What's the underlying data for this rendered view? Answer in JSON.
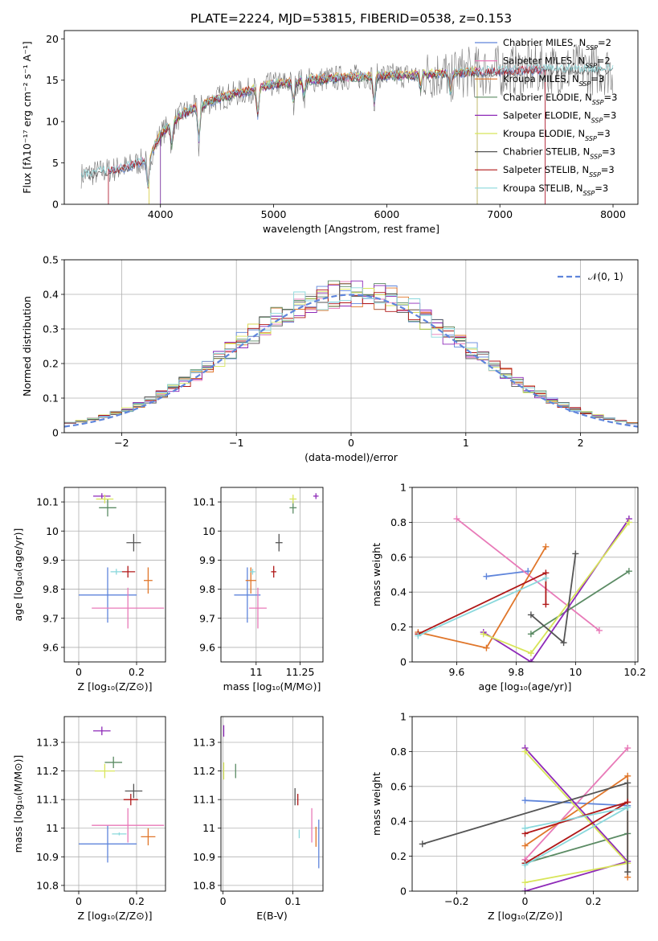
{
  "figure": {
    "title": "PLATE=2224, MJD=53815, FIBERID=0538, z=0.153"
  },
  "colors": [
    "#5f85db",
    "#e87ab8",
    "#e0762a",
    "#5b8b64",
    "#8e2ab8",
    "#d8e55a",
    "#555555",
    "#b01818",
    "#8ad8dc"
  ],
  "chart_data": [
    {
      "id": "spectrum",
      "type": "line",
      "title": "PLATE=2224, MJD=53815, FIBERID=0538, z=0.153",
      "xlabel": "wavelength [Angstrom, rest frame]",
      "ylabel": "Flux [fλ10⁻¹⁷ erg cm⁻² s⁻¹ A⁻¹]",
      "xlim": [
        3150,
        8220
      ],
      "ylim": [
        0,
        21
      ],
      "xticks": [
        4000,
        5000,
        6000,
        7000,
        8000
      ],
      "yticks": [
        0,
        5,
        10,
        15,
        20
      ],
      "grid": false,
      "legend_position": "right",
      "legend": [
        "Chabrier MILES, N_SSP=2",
        "Salpeter MILES, N_SSP=2",
        "Kroupa MILES, N_SSP=3",
        "Chabrier ELODIE, N_SSP=3",
        "Salpeter ELODIE, N_SSP=3",
        "Kroupa ELODIE, N_SSP=3",
        "Chabrier STELIB, N_SSP=3",
        "Salpeter STELIB, N_SSP=3",
        "Kroupa STELIB, N_SSP=3"
      ],
      "continuum_x": [
        3300,
        3500,
        3700,
        3900,
        4000,
        4200,
        4500,
        4800,
        5000,
        5300,
        5600,
        5900,
        6200,
        6500,
        6800,
        7000,
        7200,
        7400
      ],
      "continuum_y": [
        3.5,
        4.0,
        4.5,
        5.5,
        8.5,
        11.0,
        12.8,
        13.8,
        14.5,
        15.0,
        15.3,
        15.5,
        15.6,
        15.8,
        16.0,
        16.1,
        16.2,
        16.3
      ],
      "data_range": [
        3300,
        8000
      ],
      "model_ranges": [
        [
          3540,
          7400
        ],
        [
          3540,
          7400
        ],
        [
          3900,
          6800
        ],
        [
          4000,
          6800
        ],
        [
          4000,
          6800
        ],
        [
          3900,
          6800
        ],
        [
          3300,
          8000
        ],
        [
          3540,
          7400
        ],
        [
          3300,
          8000
        ]
      ]
    },
    {
      "id": "residuals",
      "type": "line",
      "xlabel": "(data-model)/error",
      "ylabel": "Normed distribution",
      "xlim": [
        -2.5,
        2.5
      ],
      "ylim": [
        0,
        0.5
      ],
      "xticks": [
        -2,
        -1,
        0,
        1,
        2
      ],
      "yticks": [
        0.0,
        0.1,
        0.2,
        0.3,
        0.4,
        0.5
      ],
      "grid": true,
      "legend_position": "top-right",
      "legend": [
        "𝒩(0, 1)"
      ],
      "bin_edges_start": -2.5,
      "bin_width": 0.1,
      "n_bins": 50
    },
    {
      "id": "age-vs-Z",
      "type": "scatter",
      "xlabel": "Z [log₁₀(Z/Z⊙)]",
      "ylabel": "age  [log₁₀(age/yr)]",
      "xlim": [
        -0.05,
        0.3
      ],
      "ylim": [
        9.55,
        10.15
      ],
      "xticks": [
        0.0,
        0.2
      ],
      "yticks": [
        9.6,
        9.7,
        9.8,
        9.9,
        10.0,
        10.1
      ],
      "grid": true,
      "points": [
        {
          "x": 0.1,
          "xerr": 0.2,
          "y": 9.78,
          "yerr": 0.19
        },
        {
          "x": 0.17,
          "xerr": 0.25,
          "y": 9.735,
          "yerr": 0.14
        },
        {
          "x": 0.24,
          "xerr": 0.03,
          "y": 9.83,
          "yerr": 0.09
        },
        {
          "x": 0.1,
          "xerr": 0.06,
          "y": 10.08,
          "yerr": 0.06
        },
        {
          "x": 0.08,
          "xerr": 0.06,
          "y": 10.12,
          "yerr": 0.02
        },
        {
          "x": 0.09,
          "xerr": 0.06,
          "y": 10.11,
          "yerr": 0.03
        },
        {
          "x": 0.19,
          "xerr": 0.05,
          "y": 9.96,
          "yerr": 0.06
        },
        {
          "x": 0.17,
          "xerr": 0.05,
          "y": 9.86,
          "yerr": 0.04
        },
        {
          "x": 0.13,
          "xerr": 0.04,
          "y": 9.86,
          "yerr": 0.02
        }
      ]
    },
    {
      "id": "age-vs-mass",
      "type": "scatter",
      "xlabel": "mass [log₁₀(M/M⊙)]",
      "xlim": [
        10.8,
        11.38
      ],
      "ylim": [
        9.55,
        10.15
      ],
      "xticks": [
        11.0,
        11.25
      ],
      "yticks": [
        9.6,
        9.7,
        9.8,
        9.9,
        10.0,
        10.1
      ],
      "grid": true,
      "points": [
        {
          "x": 10.95,
          "xerr": 0.15,
          "y": 9.78,
          "yerr": 0.19
        },
        {
          "x": 11.01,
          "xerr": 0.1,
          "y": 9.735,
          "yerr": 0.14
        },
        {
          "x": 10.97,
          "xerr": 0.06,
          "y": 9.83,
          "yerr": 0.09
        },
        {
          "x": 11.21,
          "xerr": 0.04,
          "y": 10.08,
          "yerr": 0.04
        },
        {
          "x": 11.34,
          "xerr": 0.03,
          "y": 10.12,
          "yerr": 0.02
        },
        {
          "x": 11.21,
          "xerr": 0.04,
          "y": 10.11,
          "yerr": 0.03
        },
        {
          "x": 11.13,
          "xerr": 0.04,
          "y": 9.96,
          "yerr": 0.06
        },
        {
          "x": 11.1,
          "xerr": 0.03,
          "y": 9.86,
          "yerr": 0.04
        },
        {
          "x": 10.98,
          "xerr": 0.03,
          "y": 9.86,
          "yerr": 0.02
        }
      ]
    },
    {
      "id": "weight-vs-age",
      "type": "line",
      "xlabel": "age  [log₁₀(age/yr)]",
      "ylabel": "mass weight",
      "xlim": [
        9.45,
        10.21
      ],
      "ylim": [
        0,
        1
      ],
      "xticks": [
        9.6,
        9.8,
        10.0,
        10.2
      ],
      "yticks": [
        0.0,
        0.2,
        0.4,
        0.6,
        0.8,
        1.0
      ],
      "grid": true,
      "series": [
        {
          "x": [
            9.7,
            9.84
          ],
          "y": [
            0.49,
            0.52
          ]
        },
        {
          "x": [
            9.6,
            10.08
          ],
          "y": [
            0.82,
            0.18
          ]
        },
        {
          "x": [
            9.47,
            9.7,
            9.9
          ],
          "y": [
            0.17,
            0.08,
            0.66
          ]
        },
        {
          "x": [
            9.85,
            10.18
          ],
          "y": [
            0.16,
            0.52
          ]
        },
        {
          "x": [
            9.69,
            9.85,
            10.18
          ],
          "y": [
            0.17,
            0.0,
            0.82
          ]
        },
        {
          "x": [
            9.69,
            9.85,
            10.18
          ],
          "y": [
            0.16,
            0.05,
            0.8
          ]
        },
        {
          "x": [
            9.85,
            9.96,
            10.0
          ],
          "y": [
            0.27,
            0.11,
            0.62
          ]
        },
        {
          "x": [
            9.47,
            9.9,
            9.9
          ],
          "y": [
            0.16,
            0.51,
            0.33
          ]
        },
        {
          "x": [
            9.47,
            9.9
          ],
          "y": [
            0.15,
            0.48
          ]
        }
      ]
    },
    {
      "id": "mass-vs-Z",
      "type": "scatter",
      "xlabel": "Z [log₁₀(Z/Z⊙)]",
      "ylabel": "mass [log₁₀(M/M⊙)]",
      "xlim": [
        -0.05,
        0.3
      ],
      "ylim": [
        10.78,
        11.39
      ],
      "xticks": [
        0.0,
        0.2
      ],
      "yticks": [
        10.8,
        10.9,
        11.0,
        11.1,
        11.2,
        11.3
      ],
      "grid": true,
      "points": [
        {
          "x": 0.1,
          "xerr": 0.2,
          "y": 10.945,
          "yerr": 0.13
        },
        {
          "x": 0.17,
          "xerr": 0.25,
          "y": 11.01,
          "yerr": 0.12
        },
        {
          "x": 0.24,
          "xerr": 0.05,
          "y": 10.97,
          "yerr": 0.06
        },
        {
          "x": 0.12,
          "xerr": 0.06,
          "y": 11.23,
          "yerr": 0.04
        },
        {
          "x": 0.08,
          "xerr": 0.06,
          "y": 11.34,
          "yerr": 0.03
        },
        {
          "x": 0.09,
          "xerr": 0.07,
          "y": 11.2,
          "yerr": 0.05
        },
        {
          "x": 0.19,
          "xerr": 0.06,
          "y": 11.13,
          "yerr": 0.05
        },
        {
          "x": 0.18,
          "xerr": 0.05,
          "y": 11.1,
          "yerr": 0.04
        },
        {
          "x": 0.14,
          "xerr": 0.05,
          "y": 10.98,
          "yerr": 0.01
        }
      ]
    },
    {
      "id": "mass-vs-ebv",
      "type": "scatter",
      "xlabel": "E(B-V)",
      "xlim": [
        -0.003,
        0.143
      ],
      "ylim": [
        10.78,
        11.39
      ],
      "xticks": [
        0.0,
        0.1
      ],
      "yticks": [
        10.8,
        10.9,
        11.0,
        11.1,
        11.2,
        11.3
      ],
      "grid": true,
      "points": [
        {
          "x": 0.137,
          "y": 10.945,
          "yerr": 0.17
        },
        {
          "x": 0.127,
          "y": 11.01,
          "yerr": 0.12
        },
        {
          "x": 0.133,
          "y": 10.97,
          "yerr": 0.07
        },
        {
          "x": 0.018,
          "y": 11.2,
          "yerr": 0.05
        },
        {
          "x": 0.001,
          "y": 11.34,
          "yerr": 0.04
        },
        {
          "x": 0.001,
          "y": 11.2,
          "yerr": 0.06
        },
        {
          "x": 0.103,
          "y": 11.11,
          "yerr": 0.06
        },
        {
          "x": 0.107,
          "y": 11.1,
          "yerr": 0.04
        },
        {
          "x": 0.109,
          "y": 10.98,
          "yerr": 0.03
        }
      ]
    },
    {
      "id": "weight-vs-Z",
      "type": "line",
      "xlabel": "Z [log₁₀(Z/Z⊙)]",
      "ylabel": "mass weight",
      "xlim": [
        -0.33,
        0.33
      ],
      "ylim": [
        0,
        1
      ],
      "xticks": [
        -0.2,
        0.0,
        0.2
      ],
      "yticks": [
        0.0,
        0.2,
        0.4,
        0.6,
        0.8,
        1.0
      ],
      "grid": true,
      "series": [
        {
          "x": [
            0.0,
            0.3
          ],
          "y": [
            0.52,
            0.49
          ]
        },
        {
          "x": [
            0.0,
            0.3,
            0.0
          ],
          "y": [
            0.18,
            0.82,
            0.18
          ]
        },
        {
          "x": [
            0.0,
            0.3,
            0.3
          ],
          "y": [
            0.26,
            0.66,
            0.08
          ]
        },
        {
          "x": [
            0.0,
            0.3,
            0.0
          ],
          "y": [
            0.16,
            0.33,
            0.16
          ]
        },
        {
          "x": [
            0.0,
            0.3,
            0.0
          ],
          "y": [
            0.82,
            0.17,
            0.0
          ]
        },
        {
          "x": [
            0.0,
            0.3,
            0.0
          ],
          "y": [
            0.8,
            0.16,
            0.05
          ]
        },
        {
          "x": [
            -0.3,
            0.3,
            0.3
          ],
          "y": [
            0.27,
            0.62,
            0.11
          ]
        },
        {
          "x": [
            0.0,
            0.3,
            0.0
          ],
          "y": [
            0.33,
            0.51,
            0.16
          ]
        },
        {
          "x": [
            0.0,
            0.3,
            0.0
          ],
          "y": [
            0.36,
            0.48,
            0.15
          ]
        }
      ]
    }
  ]
}
